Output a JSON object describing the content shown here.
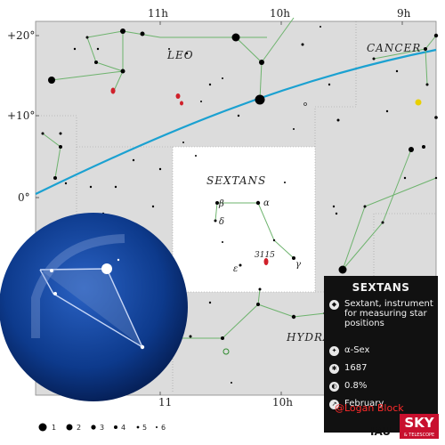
{
  "axes": {
    "ra_labels": [
      "11h",
      "10h",
      "9h"
    ],
    "ra_labels_bottom": [
      "11",
      "10h"
    ],
    "dec_labels": [
      "+20°",
      "+10°",
      "0°"
    ]
  },
  "constellations": {
    "leo": "LEO",
    "cancer": "CANCER",
    "sextans": "SEXTANS",
    "hydra": "HYDRA"
  },
  "star_labels": {
    "alpha": "α",
    "beta": "β",
    "delta": "δ",
    "epsilon": "ε",
    "gamma": "γ"
  },
  "deep_sky": {
    "ngc": "3115"
  },
  "legend": {
    "magnitudes": [
      "1",
      "2",
      "3",
      "4",
      "5",
      "6"
    ]
  },
  "info_panel": {
    "title": "SEXTANS",
    "meaning": "Sextant, instrument for measuring star positions",
    "brightest_star": "α-Sex",
    "year": "1687",
    "sky_fraction": "0.8%",
    "best_month": "February"
  },
  "credit": "@Logan Block",
  "logos": {
    "iau": "IAU",
    "sky": "SKY",
    "sky_sub": "& TELESCOPE"
  },
  "colors": {
    "map_gray": "#dcdcdc",
    "ecliptic": "#1ba1d1",
    "constellation_lines": "#6db36d",
    "globe": "#0d3a8c",
    "panel": "#111111",
    "credit": "#ff2a2a"
  }
}
